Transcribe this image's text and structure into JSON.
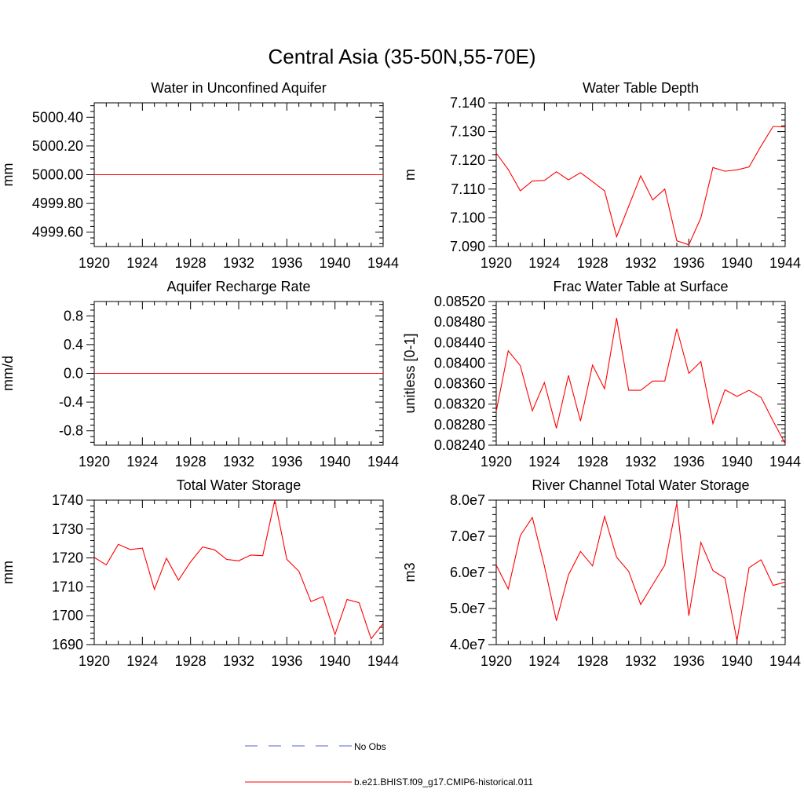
{
  "figure": {
    "title": "Central Asia (35-50N,55-70E)",
    "series_color": "#ff0000",
    "obs_color": "#5566cc"
  },
  "legend": {
    "obs_label": "No Obs",
    "model_label": "b.e21.BHIST.f09_g17.CMIP6-historical.011"
  },
  "chart_data": [
    {
      "type": "line",
      "title": "Water in Unconfined Aquifer",
      "ylabel": "mm",
      "xlim": [
        1920,
        1944
      ],
      "ylim": [
        4999.5,
        5000.5
      ],
      "x_ticks": [
        1920,
        1924,
        1928,
        1932,
        1936,
        1940,
        1944
      ],
      "y_ticks": [
        4999.6,
        4999.8,
        5000.0,
        5000.2,
        5000.4
      ],
      "y_tick_labels": [
        "4999.60",
        "4999.80",
        "5000.00",
        "5000.20",
        "5000.40"
      ],
      "series": [
        {
          "x": [
            1920,
            1921,
            1922,
            1923,
            1924,
            1925,
            1926,
            1927,
            1928,
            1929,
            1930,
            1931,
            1932,
            1933,
            1934,
            1935,
            1936,
            1937,
            1938,
            1939,
            1940,
            1941,
            1942,
            1943,
            1944
          ],
          "y": [
            5000,
            5000,
            5000,
            5000,
            5000,
            5000,
            5000,
            5000,
            5000,
            5000,
            5000,
            5000,
            5000,
            5000,
            5000,
            5000,
            5000,
            5000,
            5000,
            5000,
            5000,
            5000,
            5000,
            5000,
            5000
          ]
        }
      ]
    },
    {
      "type": "line",
      "title": "Water Table Depth",
      "ylabel": "m",
      "xlim": [
        1920,
        1944
      ],
      "ylim": [
        7.09,
        7.14
      ],
      "x_ticks": [
        1920,
        1924,
        1928,
        1932,
        1936,
        1940,
        1944
      ],
      "y_ticks": [
        7.09,
        7.1,
        7.11,
        7.12,
        7.13,
        7.14
      ],
      "y_tick_labels": [
        "7.090",
        "7.100",
        "7.110",
        "7.120",
        "7.130",
        "7.140"
      ],
      "series": [
        {
          "x": [
            1920,
            1921,
            1922,
            1923,
            1924,
            1925,
            1926,
            1927,
            1928,
            1929,
            1930,
            1931,
            1932,
            1933,
            1934,
            1935,
            1936,
            1937,
            1938,
            1939,
            1940,
            1941,
            1942,
            1943,
            1944
          ],
          "y": [
            7.1225,
            7.1168,
            7.1094,
            7.1128,
            7.113,
            7.116,
            7.1132,
            7.1157,
            7.1126,
            7.1094,
            7.0934,
            7.104,
            7.1146,
            7.1062,
            7.11,
            7.092,
            7.0906,
            7.1,
            7.1175,
            7.1162,
            7.1167,
            7.1177,
            7.125,
            7.1318,
            7.1316
          ]
        }
      ]
    },
    {
      "type": "line",
      "title": "Aquifer Recharge Rate",
      "ylabel": "mm/d",
      "xlim": [
        1920,
        1944
      ],
      "ylim": [
        -1.0,
        1.0
      ],
      "x_ticks": [
        1920,
        1924,
        1928,
        1932,
        1936,
        1940,
        1944
      ],
      "y_ticks": [
        -0.8,
        -0.4,
        0.0,
        0.4,
        0.8
      ],
      "y_tick_labels": [
        "-0.8",
        "-0.4",
        "0.0",
        "0.4",
        "0.8"
      ],
      "series": [
        {
          "x": [
            1920,
            1921,
            1922,
            1923,
            1924,
            1925,
            1926,
            1927,
            1928,
            1929,
            1930,
            1931,
            1932,
            1933,
            1934,
            1935,
            1936,
            1937,
            1938,
            1939,
            1940,
            1941,
            1942,
            1943,
            1944
          ],
          "y": [
            0,
            0,
            0,
            0,
            0,
            0,
            0,
            0,
            0,
            0,
            0,
            0,
            0,
            0,
            0,
            0,
            0,
            0,
            0,
            0,
            0,
            0,
            0,
            0,
            0
          ]
        }
      ]
    },
    {
      "type": "line",
      "title": "Frac Water Table at Surface",
      "ylabel": "unitless [0-1]",
      "xlim": [
        1920,
        1944
      ],
      "ylim": [
        0.0824,
        0.0852
      ],
      "x_ticks": [
        1920,
        1924,
        1928,
        1932,
        1936,
        1940,
        1944
      ],
      "y_ticks": [
        0.0824,
        0.0828,
        0.0832,
        0.0836,
        0.084,
        0.0844,
        0.0848,
        0.0852
      ],
      "y_tick_labels": [
        "0.08240",
        "0.08280",
        "0.08320",
        "0.08360",
        "0.08400",
        "0.08440",
        "0.08480",
        "0.08520"
      ],
      "series": [
        {
          "x": [
            1920,
            1921,
            1922,
            1923,
            1924,
            1925,
            1926,
            1927,
            1928,
            1929,
            1930,
            1931,
            1932,
            1933,
            1934,
            1935,
            1936,
            1937,
            1938,
            1939,
            1940,
            1941,
            1942,
            1943,
            1944
          ],
          "y": [
            0.08306,
            0.08424,
            0.08395,
            0.08307,
            0.08362,
            0.08273,
            0.08376,
            0.08287,
            0.08396,
            0.0835,
            0.08488,
            0.08347,
            0.08347,
            0.08365,
            0.08365,
            0.08467,
            0.0838,
            0.08403,
            0.08282,
            0.08348,
            0.08335,
            0.08347,
            0.08333,
            0.08287,
            0.08243
          ]
        }
      ]
    },
    {
      "type": "line",
      "title": "Total Water Storage",
      "ylabel": "mm",
      "xlim": [
        1920,
        1944
      ],
      "ylim": [
        1690,
        1740
      ],
      "x_ticks": [
        1920,
        1924,
        1928,
        1932,
        1936,
        1940,
        1944
      ],
      "y_ticks": [
        1690,
        1700,
        1710,
        1720,
        1730,
        1740
      ],
      "y_tick_labels": [
        "1690",
        "1700",
        "1710",
        "1720",
        "1730",
        "1740"
      ],
      "series": [
        {
          "x": [
            1920,
            1921,
            1922,
            1923,
            1924,
            1925,
            1926,
            1927,
            1928,
            1929,
            1930,
            1931,
            1932,
            1933,
            1934,
            1935,
            1936,
            1937,
            1938,
            1939,
            1940,
            1941,
            1942,
            1943,
            1944
          ],
          "y": [
            1720.2,
            1717.6,
            1724.7,
            1722.9,
            1723.4,
            1709.1,
            1719.9,
            1712.3,
            1718.6,
            1723.8,
            1722.8,
            1719.5,
            1719.0,
            1721.0,
            1720.8,
            1740.0,
            1719.5,
            1715.4,
            1704.9,
            1706.6,
            1693.5,
            1705.6,
            1704.5,
            1692.0,
            1697.3
          ]
        }
      ]
    },
    {
      "type": "line",
      "title": "River Channel Total Water Storage",
      "ylabel": "m3",
      "xlim": [
        1920,
        1944
      ],
      "ylim": [
        40000000,
        80000000
      ],
      "x_ticks": [
        1920,
        1924,
        1928,
        1932,
        1936,
        1940,
        1944
      ],
      "y_ticks": [
        40000000,
        50000000,
        60000000,
        70000000,
        80000000
      ],
      "y_tick_labels": [
        "4.0e7",
        "5.0e7",
        "6.0e7",
        "7.0e7",
        "8.0e7"
      ],
      "series": [
        {
          "x": [
            1920,
            1921,
            1922,
            1923,
            1924,
            1925,
            1926,
            1927,
            1928,
            1929,
            1930,
            1931,
            1932,
            1933,
            1934,
            1935,
            1936,
            1937,
            1938,
            1939,
            1940,
            1941,
            1942,
            1943,
            1944
          ],
          "y": [
            62000000,
            55400000,
            70200000,
            75200000,
            61800000,
            46600000,
            59300000,
            65800000,
            61800000,
            75500000,
            64200000,
            60300000,
            51100000,
            56600000,
            62000000,
            79200000,
            48000000,
            68300000,
            60500000,
            58400000,
            41100000,
            61300000,
            63500000,
            56400000,
            57300000
          ]
        }
      ]
    }
  ]
}
